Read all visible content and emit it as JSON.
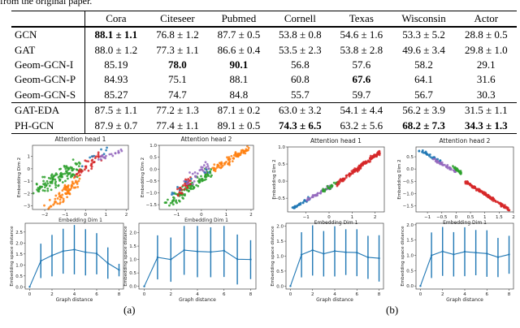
{
  "caption": "from the original paper.",
  "table": {
    "headers": [
      "",
      "Cora",
      "Citeseer",
      "Pubmed",
      "Cornell",
      "Texas",
      "Wisconsin",
      "Actor"
    ],
    "rows": [
      {
        "model": "GCN",
        "cells": [
          "88.1 ± 1.1",
          "76.8 ± 1.2",
          "87.7 ± 0.5",
          "53.8 ± 0.8",
          "54.6 ± 1.6",
          "53.3 ± 5.2",
          "28.8 ± 0.5"
        ],
        "bold": [
          0
        ]
      },
      {
        "model": "GAT",
        "cells": [
          "88.0 ± 1.2",
          "77.3 ± 1.1",
          "86.6 ± 0.4",
          "53.5 ± 2.3",
          "53.8 ± 2.8",
          "49.6 ± 3.4",
          "29.8 ± 1.0"
        ],
        "bold": []
      },
      {
        "model": "Geom-GCN-I",
        "cells": [
          "85.19",
          "78.0",
          "90.1",
          "56.8",
          "57.6",
          "58.2",
          "29.1"
        ],
        "bold": [
          1,
          2
        ]
      },
      {
        "model": "Geom-GCN-P",
        "cells": [
          "84.93",
          "75.1",
          "88.1",
          "60.8",
          "67.6",
          "64.1",
          "31.6"
        ],
        "bold": [
          4
        ]
      },
      {
        "model": "Geom-GCN-S",
        "cells": [
          "85.27",
          "74.7",
          "84.8",
          "55.7",
          "59.7",
          "56.7",
          "30.3"
        ],
        "bold": []
      },
      {
        "model": "GAT-EDA",
        "cells": [
          "87.5 ± 1.1",
          "77.2 ± 1.3",
          "87.1 ± 0.2",
          "63.0 ± 3.2",
          "54.1 ± 4.4",
          "56.2 ± 3.9",
          "31.5 ± 1.1"
        ],
        "bold": [],
        "sep": true
      },
      {
        "model": "PH-GCN",
        "cells": [
          "87.9 ± 0.7",
          "77.4 ± 1.1",
          "89.1 ± 0.5",
          "74.3 ± 6.5",
          "63.2 ± 5.6",
          "68.2 ± 7.3",
          "34.3 ± 1.3"
        ],
        "bold": [
          3,
          5,
          6
        ]
      }
    ]
  },
  "subfig_labels": [
    "(a)",
    "(b)"
  ],
  "colors": {
    "blue": "#1f77b4",
    "orange": "#ff7f0e",
    "green": "#2ca02c",
    "red": "#d62728",
    "purple": "#9467bd"
  },
  "chart_data": [
    {
      "type": "scatter",
      "title": "Attention head 1",
      "xlabel": "Embedding Dim 1",
      "ylabel": "Embedding Dim 2",
      "xlim": [
        -2.6,
        2.1
      ],
      "ylim": [
        -3.3,
        1.9
      ],
      "xticks": [
        -2,
        -1,
        0,
        1,
        2
      ],
      "yticks": [
        -3,
        -2,
        -1,
        0,
        1
      ],
      "clusters": [
        {
          "color": "green",
          "from": [
            -2.3,
            -1.6
          ],
          "to": [
            -0.3,
            0.2
          ],
          "n": 120,
          "spread": 0.28
        },
        {
          "color": "orange",
          "from": [
            -1.8,
            -3.0
          ],
          "to": [
            -0.6,
            -1.6
          ],
          "n": 45,
          "spread": 0.2
        },
        {
          "color": "orange",
          "from": [
            -1.2,
            -2.0
          ],
          "to": [
            -0.3,
            -0.9
          ],
          "n": 35,
          "spread": 0.2
        },
        {
          "color": "red",
          "from": [
            -0.5,
            -0.4
          ],
          "to": [
            0.7,
            1.0
          ],
          "n": 40,
          "spread": 0.18
        },
        {
          "color": "purple",
          "from": [
            0.3,
            0.7
          ],
          "to": [
            1.9,
            1.5
          ],
          "n": 20,
          "spread": 0.15
        },
        {
          "color": "blue",
          "from": [
            -0.3,
            0.3
          ],
          "to": [
            1.2,
            1.6
          ],
          "n": 8,
          "spread": 0.15
        }
      ]
    },
    {
      "type": "scatter",
      "title": "Attention head 2",
      "xlabel": "Embedding Dim 1",
      "ylabel": "Embedding Dim 2",
      "xlim": [
        -1.7,
        2.1
      ],
      "ylim": [
        -1.7,
        1.0
      ],
      "xticks": [
        -1,
        0,
        1,
        2
      ],
      "yticks": [
        -1.5,
        -1.0,
        -0.5,
        0.0,
        0.5,
        1.0
      ],
      "clusters": [
        {
          "color": "green",
          "from": [
            -1.4,
            -1.5
          ],
          "to": [
            0.4,
            -0.1
          ],
          "n": 100,
          "spread": 0.12
        },
        {
          "color": "orange",
          "from": [
            0.5,
            0.0
          ],
          "to": [
            1.9,
            0.85
          ],
          "n": 80,
          "spread": 0.08
        },
        {
          "color": "red",
          "from": [
            -0.9,
            -0.95
          ],
          "to": [
            -0.5,
            -0.5
          ],
          "n": 40,
          "spread": 0.1
        },
        {
          "color": "purple",
          "from": [
            -0.8,
            -0.8
          ],
          "to": [
            0.3,
            0.2
          ],
          "n": 30,
          "spread": 0.12
        },
        {
          "color": "blue",
          "from": [
            -1.3,
            -1.2
          ],
          "to": [
            0.3,
            0.0
          ],
          "n": 10,
          "spread": 0.12
        }
      ]
    },
    {
      "type": "scatter",
      "title": "Attention head 1",
      "xlabel": "Embedding Dim 1",
      "ylabel": "Embedding Dim 2",
      "xlim": [
        -1.8,
        2.4
      ],
      "ylim": [
        -0.9,
        1.0
      ],
      "xticks": [
        -1,
        0,
        1,
        2
      ],
      "yticks": [
        -0.5,
        0.0,
        0.5,
        1.0
      ],
      "clusters": [
        {
          "color": "blue",
          "from": [
            -1.6,
            -0.8
          ],
          "to": [
            -0.8,
            -0.5
          ],
          "n": 30,
          "spread": 0.03
        },
        {
          "color": "purple",
          "from": [
            -1.0,
            -0.55
          ],
          "to": [
            0.1,
            -0.15
          ],
          "n": 40,
          "spread": 0.03
        },
        {
          "color": "green",
          "from": [
            -0.3,
            -0.3
          ],
          "to": [
            0.4,
            -0.05
          ],
          "n": 25,
          "spread": 0.03
        },
        {
          "color": "red",
          "from": [
            0.3,
            -0.1
          ],
          "to": [
            2.2,
            0.85
          ],
          "n": 150,
          "spread": 0.03
        }
      ]
    },
    {
      "type": "scatter",
      "title": "Attention head 2",
      "xlabel": "Embedding Dim 1",
      "ylabel": "Embedding Dim 2",
      "xlim": [
        -1.4,
        2.0
      ],
      "ylim": [
        -1.75,
        0.9
      ],
      "xticks": [
        -1.0,
        -0.5,
        0.0,
        0.5,
        1.0,
        1.5,
        2.0
      ],
      "yticks": [
        -1.5,
        -1.0,
        -0.5,
        0.0,
        0.5
      ],
      "clusters": [
        {
          "color": "blue",
          "from": [
            -1.3,
            0.78
          ],
          "to": [
            -0.5,
            0.3
          ],
          "n": 30,
          "spread": 0.03
        },
        {
          "color": "purple",
          "from": [
            -0.8,
            0.4
          ],
          "to": [
            0.0,
            -0.1
          ],
          "n": 40,
          "spread": 0.03
        },
        {
          "color": "green",
          "from": [
            -0.1,
            0.1
          ],
          "to": [
            0.2,
            -0.2
          ],
          "n": 25,
          "spread": 0.03
        },
        {
          "color": "red",
          "from": [
            0.3,
            -0.5
          ],
          "to": [
            1.85,
            -1.65
          ],
          "n": 150,
          "spread": 0.03
        }
      ]
    },
    {
      "type": "line",
      "xlabel": "Graph distance",
      "ylabel": "Embedding space distance",
      "xlim": [
        -0.4,
        8.4
      ],
      "ylim": [
        -0.1,
        2.9
      ],
      "xticks": [
        0,
        2,
        4,
        6,
        8
      ],
      "yticks": [
        0.0,
        0.5,
        1.0,
        1.5,
        2.0,
        2.5
      ],
      "x": [
        0,
        1,
        2,
        3,
        4,
        5,
        6,
        7,
        8
      ],
      "y": [
        0,
        1.18,
        1.43,
        1.63,
        1.7,
        1.58,
        1.52,
        1.08,
        0.77
      ],
      "upper": [
        0,
        1.97,
        2.37,
        2.65,
        2.82,
        2.63,
        2.45,
        1.8,
        1.05
      ],
      "lower": [
        0,
        0.4,
        0.48,
        0.6,
        0.57,
        0.52,
        0.57,
        0.37,
        0.48
      ]
    },
    {
      "type": "line",
      "xlabel": "Graph distance",
      "ylabel": "Embedding space distance",
      "xlim": [
        -0.4,
        8.4
      ],
      "ylim": [
        -0.1,
        2.35
      ],
      "xticks": [
        0,
        2,
        4,
        6,
        8
      ],
      "yticks": [
        0.0,
        0.5,
        1.0,
        1.5,
        2.0
      ],
      "x": [
        0,
        1,
        2,
        3,
        4,
        5,
        6,
        7,
        8
      ],
      "y": [
        0,
        1.08,
        1.0,
        1.35,
        1.3,
        1.28,
        1.33,
        1.01,
        1.0
      ],
      "upper": [
        0,
        1.9,
        1.82,
        2.25,
        2.25,
        2.2,
        2.25,
        1.93,
        1.72
      ],
      "lower": [
        0,
        0.26,
        0.17,
        0.43,
        0.34,
        0.34,
        0.35,
        0.07,
        0.27
      ]
    },
    {
      "type": "line",
      "xlabel": "Graph distance",
      "ylabel": "Embedding space distance",
      "xlim": [
        -0.4,
        8.4
      ],
      "ylim": [
        -0.1,
        2.1
      ],
      "xticks": [
        0,
        2,
        4,
        6,
        8
      ],
      "yticks": [
        0.0,
        0.5,
        1.0,
        1.5,
        2.0
      ],
      "x": [
        0,
        1,
        2,
        3,
        4,
        5,
        6,
        7,
        8
      ],
      "y": [
        0,
        1.05,
        1.2,
        1.08,
        1.17,
        1.13,
        1.12,
        0.96,
        0.93
      ],
      "upper": [
        0,
        1.8,
        2.03,
        1.84,
        2.0,
        1.9,
        1.9,
        1.68,
        1.7
      ],
      "lower": [
        0,
        0.29,
        0.35,
        0.32,
        0.32,
        0.37,
        0.33,
        0.24,
        0.15
      ]
    },
    {
      "type": "line",
      "xlabel": "Graph distance",
      "ylabel": "Embedding space distance",
      "xlim": [
        -0.4,
        8.4
      ],
      "ylim": [
        -0.1,
        2.05
      ],
      "xticks": [
        0,
        2,
        4,
        6,
        8
      ],
      "yticks": [
        0.0,
        0.5,
        1.0,
        1.5,
        2.0
      ],
      "x": [
        0,
        1,
        2,
        3,
        4,
        5,
        6,
        7,
        8
      ],
      "y": [
        0,
        1.0,
        1.13,
        1.03,
        1.12,
        1.09,
        1.06,
        0.94,
        1.03
      ],
      "upper": [
        0,
        1.75,
        1.93,
        1.76,
        1.92,
        1.83,
        1.82,
        1.57,
        1.64
      ],
      "lower": [
        0,
        0.26,
        0.33,
        0.31,
        0.32,
        0.35,
        0.3,
        0.29,
        0.4
      ]
    }
  ]
}
